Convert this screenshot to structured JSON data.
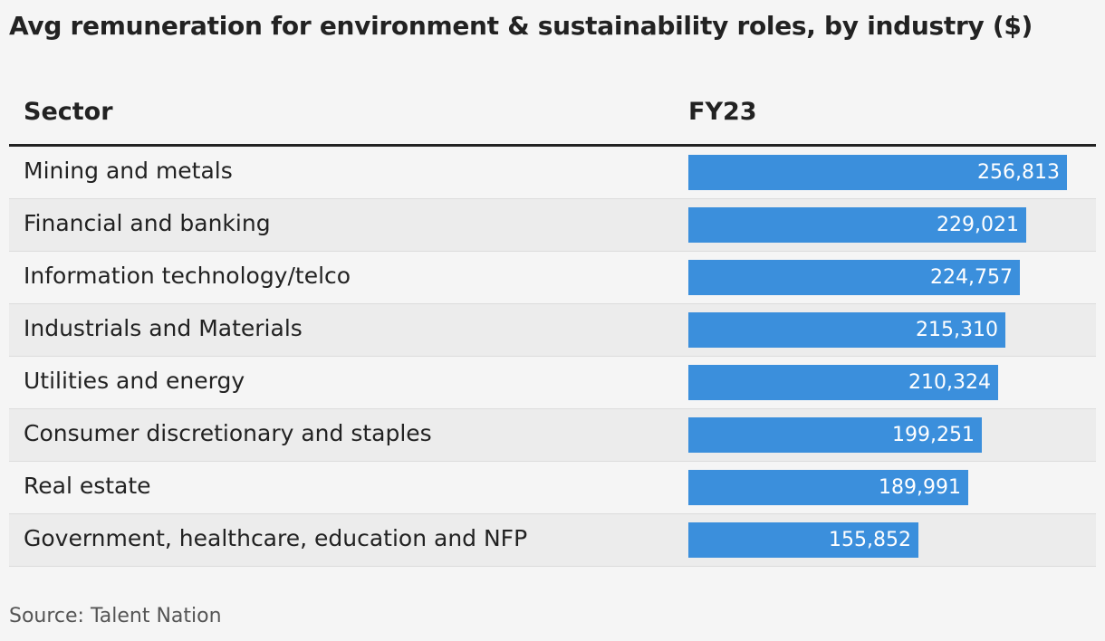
{
  "title": "Avg remuneration for environment & sustainability roles, by industry ($)",
  "source": "Source: Talent Nation",
  "chart_data": {
    "type": "bar",
    "orientation": "horizontal",
    "columns": [
      "Sector",
      "FY23"
    ],
    "categories": [
      "Mining and metals",
      "Financial and banking",
      "Information technology/telco",
      "Industrials and Materials",
      "Utilities and energy",
      "Consumer discretionary and staples",
      "Real estate",
      "Government, healthcare, education and NFP"
    ],
    "values": [
      256813,
      229021,
      224757,
      215310,
      210324,
      199251,
      189991,
      155852
    ],
    "value_labels": [
      "256,813",
      "229,021",
      "224,757",
      "215,310",
      "210,324",
      "199,251",
      "189,991",
      "155,852"
    ],
    "bar_color": "#3b8fdc",
    "grid": false,
    "legend": "none"
  }
}
